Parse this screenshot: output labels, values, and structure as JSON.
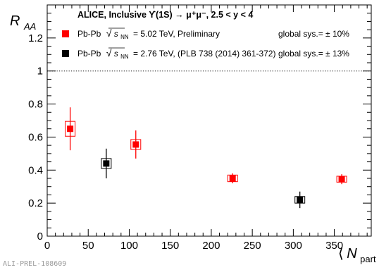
{
  "chart_data": {
    "type": "scatter",
    "header": "ALICE, Inclusive ϒ(1S) → μ⁺μ⁻, 2.5 < y < 4",
    "xlabel": "N",
    "xlabel_sub": "part",
    "ylabel": "R",
    "ylabel_sub": "AA",
    "xlim": [
      0,
      395
    ],
    "ylim": [
      0,
      1.4
    ],
    "x_ticks": [
      0,
      50,
      100,
      150,
      200,
      250,
      300,
      350
    ],
    "y_ticks": [
      0,
      0.2,
      0.4,
      0.6,
      0.8,
      1,
      1.2
    ],
    "y_tick_labels": [
      "0",
      "0.2",
      "0.4",
      "0.6",
      "0.8",
      "1",
      "1.2"
    ],
    "reference_line": 1.0,
    "series": [
      {
        "legend_prefix": "Pb-Pb",
        "energy_label": "= 5.02 TeV, Preliminary",
        "sqrt_symbol": "√",
        "s_label": "s",
        "s_sub": "NN",
        "global_sys": "global sys.= ± 10%",
        "color": "#ff0000",
        "x": [
          28,
          108,
          226,
          359
        ],
        "y": [
          0.65,
          0.555,
          0.35,
          0.345
        ],
        "stat_err": [
          0.13,
          0.085,
          0.03,
          0.03
        ],
        "sys_err": [
          0.045,
          0.03,
          0.02,
          0.018
        ]
      },
      {
        "legend_prefix": "Pb-Pb",
        "energy_label": "= 2.76 TeV, (PLB 738 (2014) 361-372)",
        "sqrt_symbol": "√",
        "s_label": "s",
        "s_sub": "NN",
        "global_sys": "global sys.= ± 13%",
        "color": "#000000",
        "x": [
          72,
          308
        ],
        "y": [
          0.44,
          0.22
        ],
        "stat_err": [
          0.09,
          0.05
        ],
        "sys_err": [
          0.03,
          0.02
        ]
      }
    ]
  },
  "footer": {
    "watermark": "ALI-PREL-108609"
  }
}
